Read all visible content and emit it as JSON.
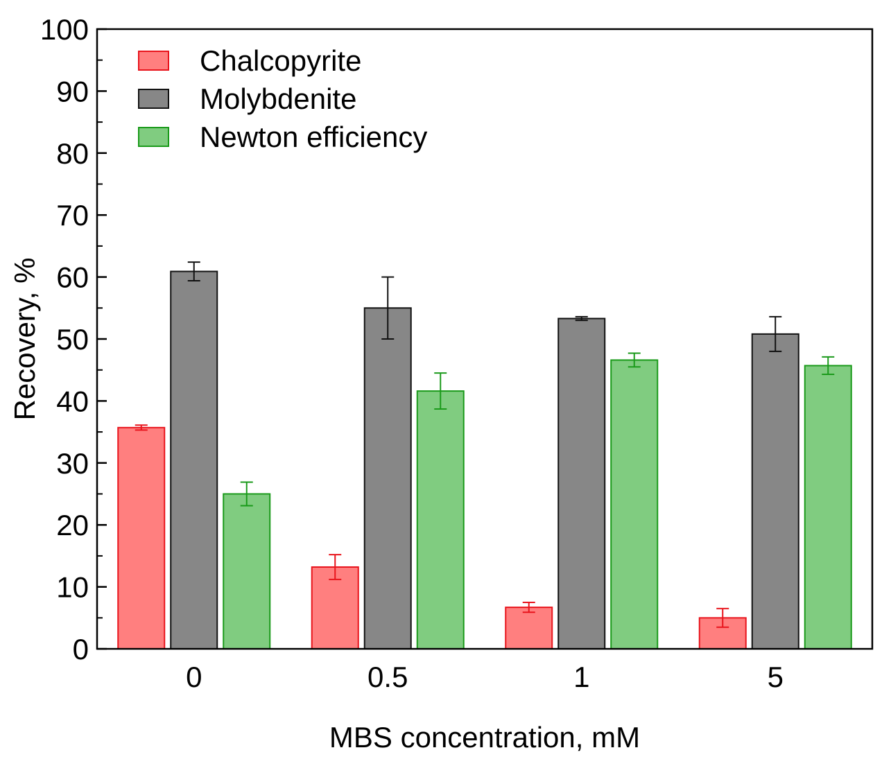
{
  "chart_data": {
    "type": "bar",
    "xlabel": "MBS concentration, mM",
    "ylabel": "Recovery, %",
    "ylim": [
      0,
      100
    ],
    "yticks": [
      "0",
      "10",
      "20",
      "30",
      "40",
      "50",
      "60",
      "70",
      "80",
      "90",
      "100"
    ],
    "categories": [
      "0",
      "0.5",
      "1",
      "5"
    ],
    "grid": false,
    "legend_position": "top-left",
    "series": [
      {
        "name": "Chalcopyrite",
        "fill": "#ff7f7f",
        "stroke": "#e8141c",
        "values": [
          35.7,
          13.2,
          6.7,
          5.0
        ],
        "errors": [
          0.4,
          2.0,
          0.8,
          1.5
        ]
      },
      {
        "name": "Molybdenite",
        "fill": "#878787",
        "stroke": "#111111",
        "values": [
          60.9,
          55.0,
          53.3,
          50.8
        ],
        "errors": [
          1.5,
          5.0,
          0.3,
          2.8
        ]
      },
      {
        "name": "Newton efficiency",
        "fill": "#80cc80",
        "stroke": "#1a9a1a",
        "values": [
          25.0,
          41.6,
          46.6,
          45.7
        ],
        "errors": [
          1.9,
          2.9,
          1.1,
          1.4
        ]
      }
    ]
  }
}
